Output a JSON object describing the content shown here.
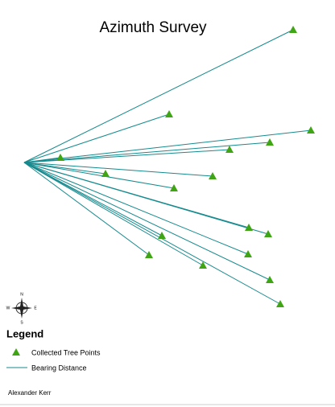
{
  "title": "Azimuth Survey",
  "compass": {
    "north": "N",
    "south": "S",
    "west": "W",
    "east": "E"
  },
  "legend": {
    "title": "Legend",
    "items": [
      "Collected Tree Points",
      "Bearing Distance"
    ]
  },
  "author": "Alexander Kerr"
}
